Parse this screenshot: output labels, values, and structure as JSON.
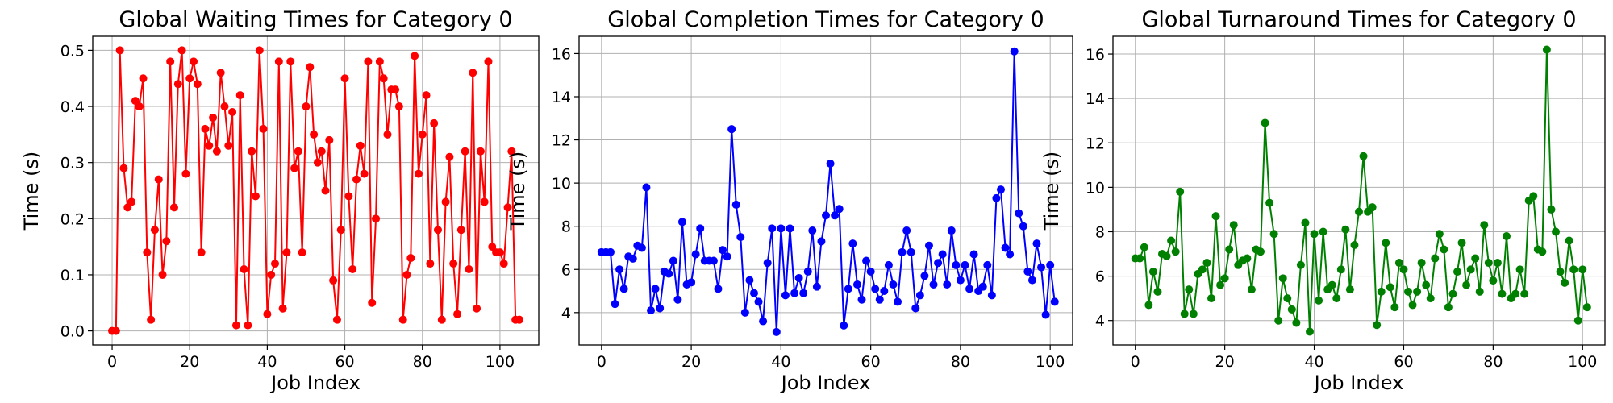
{
  "chart_data": [
    {
      "type": "line",
      "title": "Global Waiting Times for Category 0",
      "xlabel": "Job Index",
      "ylabel": "Time (s)",
      "xlim": [
        -5,
        110
      ],
      "ylim": [
        -0.025,
        0.525
      ],
      "xticks": [
        0,
        20,
        40,
        60,
        80,
        100
      ],
      "yticks": [
        0.0,
        0.1,
        0.2,
        0.3,
        0.4,
        0.5
      ],
      "xtick_labels": [
        "0",
        "20",
        "40",
        "60",
        "80",
        "100"
      ],
      "ytick_labels": [
        "0.0",
        "0.1",
        "0.2",
        "0.3",
        "0.4",
        "0.5"
      ],
      "grid": true,
      "color": "#ff0000",
      "marker": "circle",
      "x_start": 0,
      "values": [
        0.0,
        0.0,
        0.5,
        0.29,
        0.22,
        0.23,
        0.41,
        0.4,
        0.45,
        0.14,
        0.02,
        0.18,
        0.27,
        0.1,
        0.16,
        0.48,
        0.22,
        0.44,
        0.5,
        0.28,
        0.45,
        0.48,
        0.44,
        0.14,
        0.36,
        0.33,
        0.38,
        0.32,
        0.46,
        0.4,
        0.33,
        0.39,
        0.01,
        0.42,
        0.11,
        0.01,
        0.32,
        0.24,
        0.5,
        0.36,
        0.03,
        0.1,
        0.12,
        0.48,
        0.04,
        0.14,
        0.48,
        0.29,
        0.32,
        0.14,
        0.4,
        0.47,
        0.35,
        0.3,
        0.32,
        0.25,
        0.34,
        0.09,
        0.02,
        0.18,
        0.45,
        0.24,
        0.11,
        0.27,
        0.33,
        0.28,
        0.48,
        0.05,
        0.2,
        0.48,
        0.45,
        0.35,
        0.43,
        0.43,
        0.4,
        0.02,
        0.1,
        0.13,
        0.49,
        0.28,
        0.35,
        0.42,
        0.12,
        0.37,
        0.18,
        0.02,
        0.23,
        0.31,
        0.12,
        0.03,
        0.18,
        0.32,
        0.11,
        0.46,
        0.04,
        0.32,
        0.23,
        0.48,
        0.15,
        0.14,
        0.14,
        0.12,
        0.22,
        0.32,
        0.02,
        0.02
      ]
    },
    {
      "type": "line",
      "title": "Global Completion Times for Category 0",
      "xlabel": "Job Index",
      "ylabel": "Time (s)",
      "xlim": [
        -5,
        105
      ],
      "ylim": [
        2.5,
        16.8
      ],
      "xticks": [
        0,
        20,
        40,
        60,
        80,
        100
      ],
      "yticks": [
        4,
        6,
        8,
        10,
        12,
        14,
        16
      ],
      "xtick_labels": [
        "0",
        "20",
        "40",
        "60",
        "80",
        "100"
      ],
      "ytick_labels": [
        "4",
        "6",
        "8",
        "10",
        "12",
        "14",
        "16"
      ],
      "grid": true,
      "color": "#0000ff",
      "marker": "circle",
      "x_start": 0,
      "values": [
        6.8,
        6.8,
        6.8,
        4.4,
        6.0,
        5.1,
        6.6,
        6.5,
        7.1,
        7.0,
        9.8,
        4.1,
        5.1,
        4.2,
        5.9,
        5.8,
        6.4,
        4.6,
        8.2,
        5.3,
        5.4,
        6.7,
        7.9,
        6.4,
        6.4,
        6.4,
        5.1,
        6.9,
        6.6,
        12.5,
        9.0,
        7.5,
        4.0,
        5.5,
        4.9,
        4.5,
        3.6,
        6.3,
        7.9,
        3.1,
        7.9,
        4.8,
        7.9,
        4.9,
        5.6,
        4.9,
        5.9,
        7.8,
        5.2,
        7.3,
        8.5,
        10.9,
        8.5,
        8.8,
        3.4,
        5.1,
        7.2,
        5.3,
        4.6,
        6.4,
        5.9,
        5.1,
        4.6,
        5.0,
        6.2,
        5.3,
        4.5,
        6.8,
        7.8,
        6.8,
        4.2,
        4.8,
        5.7,
        7.1,
        5.3,
        6.3,
        6.7,
        5.3,
        7.8,
        6.2,
        5.5,
        6.2,
        5.1,
        6.7,
        5.0,
        5.2,
        6.2,
        4.8,
        9.3,
        9.7,
        7.0,
        6.7,
        16.1,
        8.6,
        8.0,
        5.9,
        5.5,
        7.2,
        6.1,
        3.9,
        6.2,
        4.5
      ]
    },
    {
      "type": "line",
      "title": "Global Turnaround Times for Category 0",
      "xlabel": "Job Index",
      "ylabel": "Time (s)",
      "xlim": [
        -5,
        105
      ],
      "ylim": [
        2.9,
        16.8
      ],
      "xticks": [
        0,
        20,
        40,
        60,
        80,
        100
      ],
      "yticks": [
        4,
        6,
        8,
        10,
        12,
        14,
        16
      ],
      "xtick_labels": [
        "0",
        "20",
        "40",
        "60",
        "80",
        "100"
      ],
      "ytick_labels": [
        "4",
        "6",
        "8",
        "10",
        "12",
        "14",
        "16"
      ],
      "grid": true,
      "color": "#008000",
      "marker": "circle",
      "x_start": 0,
      "values": [
        6.8,
        6.8,
        7.3,
        4.7,
        6.2,
        5.3,
        7.0,
        6.9,
        7.6,
        7.1,
        9.8,
        4.3,
        5.4,
        4.3,
        6.1,
        6.3,
        6.6,
        5.0,
        8.7,
        5.6,
        5.9,
        7.2,
        8.3,
        6.5,
        6.7,
        6.8,
        5.4,
        7.2,
        7.1,
        12.9,
        9.3,
        7.9,
        4.0,
        5.9,
        5.0,
        4.5,
        3.9,
        6.5,
        8.4,
        3.5,
        7.9,
        4.9,
        8.0,
        5.4,
        5.6,
        5.0,
        6.3,
        8.1,
        5.4,
        7.4,
        8.9,
        11.4,
        8.9,
        9.1,
        3.8,
        5.3,
        7.5,
        5.5,
        4.6,
        6.6,
        6.3,
        5.3,
        4.7,
        5.3,
        6.6,
        5.6,
        5.0,
        6.8,
        7.9,
        7.2,
        4.6,
        5.2,
        6.2,
        7.5,
        5.6,
        6.3,
        6.8,
        5.3,
        8.3,
        6.6,
        5.8,
        6.6,
        5.2,
        7.8,
        5.0,
        5.2,
        6.3,
        5.2,
        9.4,
        9.6,
        7.2,
        7.1,
        16.2,
        9.0,
        8.0,
        6.2,
        5.7,
        7.6,
        6.3,
        4.0,
        6.3,
        4.6
      ]
    }
  ]
}
